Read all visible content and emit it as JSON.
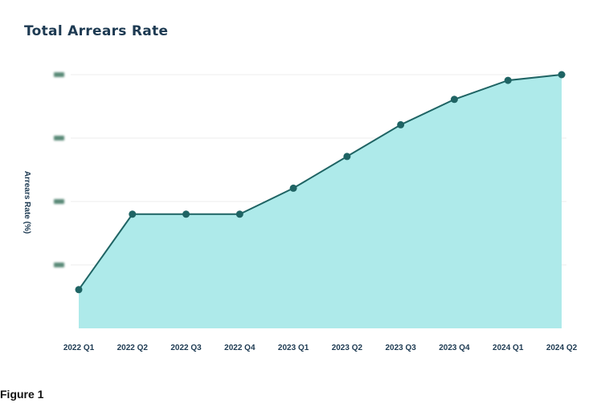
{
  "figure_caption": "Figure 1",
  "colors": {
    "area_fill": "#aeeaea",
    "line": "#1f6464",
    "marker": "#1f6464",
    "grid": "#ececec",
    "text": "#1d3a52",
    "ytick_placeholder": "#5a8a78"
  },
  "chart_data": {
    "type": "area",
    "title": "Total Arrears Rate",
    "xlabel": "",
    "ylabel": "Arrears Rate (%)",
    "categories": [
      "2022 Q1",
      "2022 Q2",
      "2022 Q3",
      "2022 Q4",
      "2023 Q1",
      "2023 Q2",
      "2023 Q3",
      "2023 Q4",
      "2024 Q1",
      "2024 Q2"
    ],
    "series": [
      {
        "values": [
          0.61,
          1.8,
          1.8,
          1.8,
          2.21,
          2.71,
          3.21,
          3.61,
          3.91,
          4.0
        ]
      }
    ],
    "ylim": [
      0,
      4
    ],
    "yticks_obscured": true,
    "grid": true,
    "markers": true
  }
}
